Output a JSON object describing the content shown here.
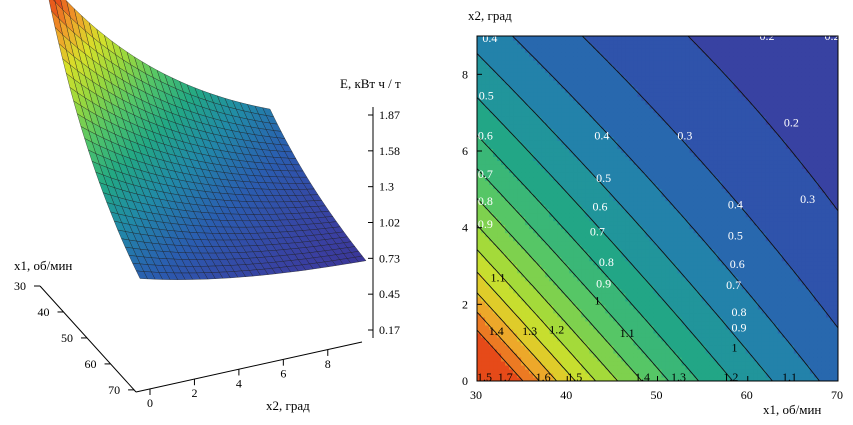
{
  "chart_data": [
    {
      "type": "surface",
      "zlabel": "E, кВт ч / т",
      "xlabel": "x1, об/мин",
      "ylabel": "x2, град",
      "z_ticks": [
        "1.87",
        "1.58",
        "1.3",
        "1.02",
        "0.73",
        "0.45",
        "0.17"
      ],
      "x1_ticks": [
        "30",
        "40",
        "50",
        "60",
        "70"
      ],
      "x2_ticks": [
        "0",
        "2",
        "4",
        "6",
        "8"
      ],
      "x1_range": [
        30,
        70
      ],
      "x2_range": [
        0,
        9
      ],
      "z_range": [
        0.17,
        1.87
      ],
      "colormap": [
        "#3b0f70",
        "#3a3ea0",
        "#2a5db0",
        "#218aa8",
        "#22a884",
        "#52c569",
        "#98d83e",
        "#d7e02a",
        "#f0a02a",
        "#e64a19"
      ]
    },
    {
      "type": "contour",
      "xlabel": "x1, об/мин",
      "ylabel": "x2, град",
      "x_ticks": [
        "30",
        "40",
        "50",
        "60",
        "70"
      ],
      "y_ticks": [
        "0",
        "2",
        "4",
        "6",
        "8"
      ],
      "xlim": [
        30,
        70
      ],
      "ylim": [
        0,
        9
      ],
      "levels": [
        0.2,
        0.3,
        0.4,
        0.5,
        0.6,
        0.7,
        0.8,
        0.9,
        1,
        1.1,
        1.2,
        1.3,
        1.4,
        1.5,
        1.6,
        1.7
      ],
      "level_labels": [
        {
          "text": "0.4",
          "x": 30.6,
          "y": 8.95
        },
        {
          "text": "0.3",
          "x": 42.1,
          "y": 9.1
        },
        {
          "text": "0.2",
          "x": 61.3,
          "y": 9.0
        },
        {
          "text": "0.2",
          "x": 68.5,
          "y": 9.0
        },
        {
          "text": "0.5",
          "x": 30.2,
          "y": 7.45
        },
        {
          "text": "0.2",
          "x": 64.0,
          "y": 6.75
        },
        {
          "text": "0.4",
          "x": 43.0,
          "y": 6.4
        },
        {
          "text": "0.3",
          "x": 52.2,
          "y": 6.4
        },
        {
          "text": "0.6",
          "x": 30.1,
          "y": 6.4
        },
        {
          "text": "0.5",
          "x": 43.2,
          "y": 5.3
        },
        {
          "text": "0.7",
          "x": 30.1,
          "y": 5.4
        },
        {
          "text": "0.3",
          "x": 65.8,
          "y": 4.75
        },
        {
          "text": "0.6",
          "x": 42.8,
          "y": 4.55
        },
        {
          "text": "0.4",
          "x": 57.8,
          "y": 4.6
        },
        {
          "text": "0.8",
          "x": 30.1,
          "y": 4.7
        },
        {
          "text": "0.9",
          "x": 30.1,
          "y": 4.1
        },
        {
          "text": "0.7",
          "x": 42.5,
          "y": 3.9
        },
        {
          "text": "0.5",
          "x": 57.8,
          "y": 3.8
        },
        {
          "text": "0.8",
          "x": 43.5,
          "y": 3.1
        },
        {
          "text": "0.6",
          "x": 58.0,
          "y": 3.05
        },
        {
          "text": "1.1",
          "x": 31.5,
          "y": 2.7
        },
        {
          "text": "0.9",
          "x": 43.2,
          "y": 2.55
        },
        {
          "text": "0.7",
          "x": 57.6,
          "y": 2.5
        },
        {
          "text": "1",
          "x": 43.0,
          "y": 2.1
        },
        {
          "text": "0.8",
          "x": 58.2,
          "y": 1.8
        },
        {
          "text": "1.4",
          "x": 31.3,
          "y": 1.3
        },
        {
          "text": "1.3",
          "x": 35.0,
          "y": 1.3
        },
        {
          "text": "1.2",
          "x": 38.0,
          "y": 1.35
        },
        {
          "text": "1.1",
          "x": 45.8,
          "y": 1.25
        },
        {
          "text": "0.9",
          "x": 58.2,
          "y": 1.4
        },
        {
          "text": "1",
          "x": 58.2,
          "y": 0.88
        },
        {
          "text": "1.5",
          "x": 30.0,
          "y": 0.1
        },
        {
          "text": "1.7",
          "x": 32.3,
          "y": 0.1
        },
        {
          "text": "1.6",
          "x": 36.5,
          "y": 0.1
        },
        {
          "text": "1.5",
          "x": 40.0,
          "y": 0.1
        },
        {
          "text": "1.4",
          "x": 47.5,
          "y": 0.1
        },
        {
          "text": "1.3",
          "x": 51.5,
          "y": 0.1
        },
        {
          "text": "1.2",
          "x": 57.3,
          "y": 0.1
        },
        {
          "text": "1.1",
          "x": 63.8,
          "y": 0.1
        }
      ]
    }
  ]
}
